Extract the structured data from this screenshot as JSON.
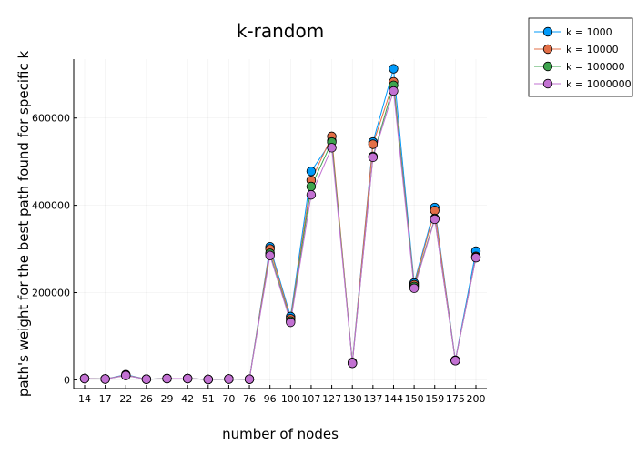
{
  "chart_data": {
    "type": "line",
    "title": "k-random",
    "xlabel": "number of nodes",
    "ylabel": "path's weight for the best path found for specific k",
    "categories": [
      "14",
      "17",
      "22",
      "26",
      "29",
      "42",
      "51",
      "70",
      "76",
      "96",
      "100",
      "107",
      "127",
      "130",
      "137",
      "144",
      "150",
      "159",
      "175",
      "200"
    ],
    "ylim": [
      -20000,
      735000
    ],
    "yticks": [
      0,
      200000,
      400000,
      600000
    ],
    "ytick_labels": [
      "0",
      "200000",
      "400000",
      "600000"
    ],
    "grid": true,
    "legend_position": "top-right",
    "series": [
      {
        "name": "k = 1000",
        "color": "#009AFA",
        "values": [
          3000,
          2000,
          12000,
          1500,
          3000,
          3000,
          1000,
          2000,
          1500,
          305000,
          145000,
          478000,
          548000,
          40000,
          545000,
          713000,
          222000,
          395000,
          45000,
          295000
        ]
      },
      {
        "name": "k = 10000",
        "color": "#E36F47",
        "values": [
          3000,
          2000,
          11000,
          1500,
          3000,
          3000,
          1000,
          2000,
          1500,
          300000,
          140000,
          457000,
          558000,
          39000,
          540000,
          683000,
          218000,
          388000,
          44000,
          283000
        ]
      },
      {
        "name": "k = 100000",
        "color": "#3EA44E",
        "values": [
          3000,
          2000,
          10000,
          1500,
          3000,
          3000,
          1000,
          2000,
          1500,
          290000,
          135000,
          443000,
          545000,
          38000,
          512000,
          675000,
          214000,
          370000,
          44000,
          281000
        ]
      },
      {
        "name": "k = 1000000",
        "color": "#C271D2",
        "values": [
          3000,
          2000,
          10000,
          1500,
          3000,
          3000,
          1000,
          2000,
          1500,
          285000,
          132000,
          424000,
          532000,
          38000,
          510000,
          662000,
          210000,
          368000,
          44000,
          280000
        ]
      }
    ]
  }
}
